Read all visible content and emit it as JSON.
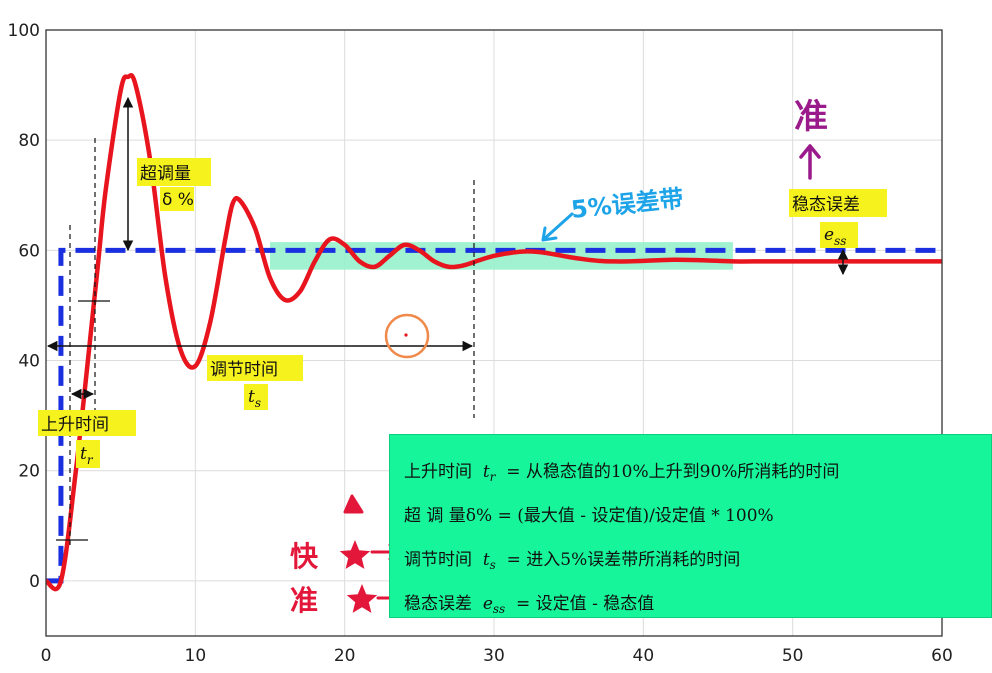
{
  "chart_data": {
    "type": "line",
    "xlim": [
      0,
      60
    ],
    "ylim": [
      -10,
      100
    ],
    "x_ticks": [
      "0",
      "10",
      "20",
      "30",
      "40",
      "50",
      "60"
    ],
    "y_ticks": [
      "0",
      "20",
      "40",
      "60",
      "80",
      "100"
    ],
    "grid": true,
    "setpoint": 60,
    "steady_state": 58,
    "series": [
      {
        "color": "#e8141e",
        "x": [
          0,
          1,
          2,
          3,
          3.5,
          4,
          5,
          5.5,
          6,
          7,
          8,
          9,
          10,
          11,
          12,
          12.5,
          13,
          14,
          15,
          16,
          17,
          18,
          19,
          20,
          21,
          22,
          23,
          24,
          25,
          26,
          27,
          28,
          29,
          30,
          31,
          32,
          33,
          34,
          35,
          36,
          37,
          38,
          39,
          40,
          42,
          44,
          46,
          48,
          50,
          52,
          54,
          56,
          58,
          60
        ],
        "y": [
          0,
          0,
          20,
          45,
          58,
          71,
          89,
          91.5,
          90,
          76,
          55,
          42,
          39,
          47,
          62,
          68.5,
          69,
          64,
          55,
          51,
          52.5,
          58,
          62,
          61,
          58,
          57,
          59,
          61,
          60,
          58,
          57,
          57.3,
          58.2,
          59,
          59.5,
          59.8,
          59.7,
          59.3,
          58.8,
          58.4,
          58.1,
          58,
          58,
          58.1,
          58.3,
          58.2,
          58,
          58,
          58,
          58,
          58,
          58,
          58,
          58
        ]
      },
      {
        "color": "#1a2fe0",
        "x": [
          0,
          1,
          1,
          60
        ],
        "y": [
          0,
          0,
          60,
          60
        ]
      }
    ],
    "band": {
      "x_range": [
        15,
        46
      ],
      "y_range": [
        56.5,
        61.5
      ],
      "color": "#8ff0c8"
    },
    "annotations": {
      "overshoot_label": "超调量",
      "overshoot_symbol": "δ %",
      "settling_label": "调节时间",
      "settling_symbol": "t",
      "settling_sub": "s",
      "rise_label": "上升时间",
      "rise_symbol": "t",
      "rise_sub": "r",
      "band_label": "5%误差带",
      "ss_error_label": "稳态误差",
      "ss_error_symbol": "e",
      "ss_error_sub": "ss",
      "accurate_top": "准"
    }
  },
  "definitions": [
    {
      "term": "上升时间",
      "sym": "t",
      "sub": "r",
      "rest": "= 从稳态值的10%上升到90%所消耗的时间"
    },
    {
      "term": "超 调 量δ%",
      "sym": "",
      "sub": "",
      "rest": "= (最大值 - 设定值)/设定值 * 100%"
    },
    {
      "term": "调节时间",
      "sym": "t",
      "sub": "s",
      "rest": "= 进入5%误差带所消耗的时间"
    },
    {
      "term": "稳态误差",
      "sym": "e",
      "sub": "ss",
      "rest": "= 设定值 - 稳态值"
    }
  ],
  "side_marks": {
    "fast": "快",
    "accurate": "准"
  },
  "colors": {
    "response": "#e8141e",
    "setpoint": "#1a2fe0",
    "legend_bg": "#17f59a",
    "highlight": "#f6f21e",
    "hand_blue": "#1da3e8",
    "hand_purple": "#9a1a8c",
    "hand_red": "#e3173a"
  }
}
